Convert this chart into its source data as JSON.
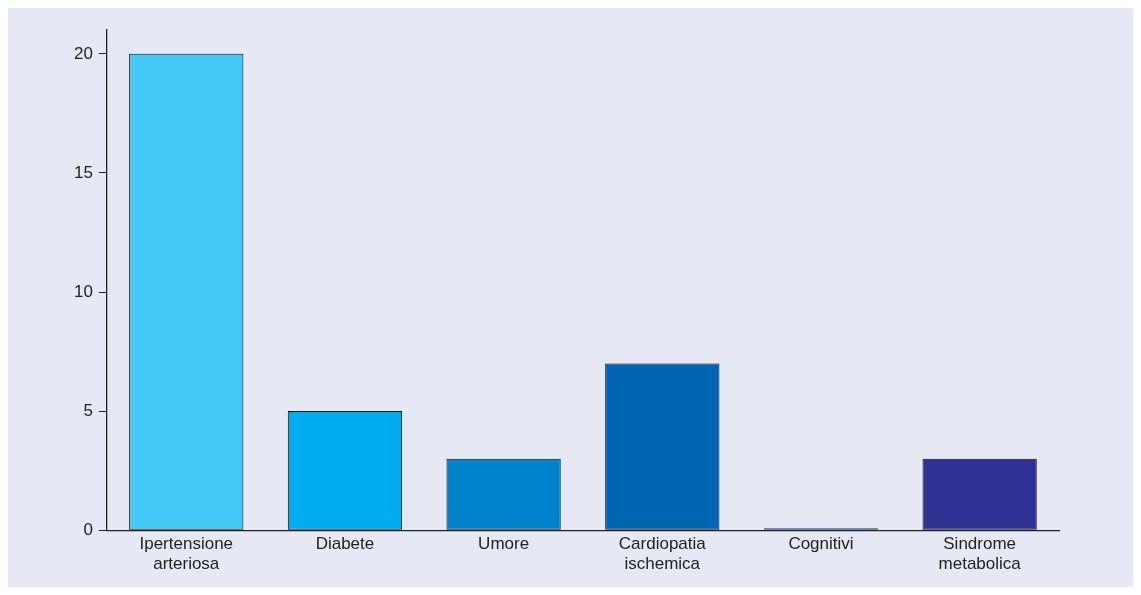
{
  "chart_data": {
    "type": "bar",
    "categories": [
      "Ipertensione arteriosa",
      "Diabete",
      "Umore",
      "Cardiopatia ischemica",
      "Cognitivi",
      "Sindrome metabolica"
    ],
    "values": [
      20,
      5,
      3,
      7,
      0,
      3
    ],
    "colors": [
      "#44c8f5",
      "#00aeef",
      "#0083ca",
      "#0066b3",
      "#1e3d7b",
      "#2e3192"
    ],
    "ylim": [
      0,
      21
    ],
    "yticks": [
      0,
      5,
      10,
      15,
      20
    ],
    "grid": false,
    "legend": false
  }
}
